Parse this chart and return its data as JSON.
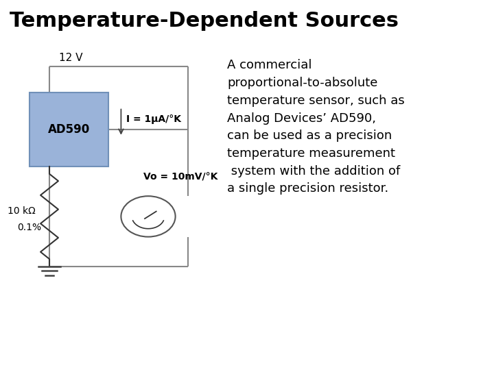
{
  "title": "Temperature-Dependent Sources",
  "title_fontsize": 22,
  "title_fontweight": "bold",
  "title_fontfamily": "DejaVu Sans",
  "bg_color": "#ffffff",
  "circuit_label_12v": "12 V",
  "circuit_label_ad590": "AD590",
  "circuit_label_current": "I = 1μA/°K",
  "circuit_label_vo": "Vo = 10mV/°K",
  "circuit_label_res1": "10 kΩ",
  "circuit_label_res2": "0.1%",
  "ad590_fill": "#9ab3d9",
  "ad590_edge": "#7090b8",
  "wire_color": "#888888",
  "text_color": "#000000",
  "body_text": "A commercial\nproportional-to-absolute\ntemperature sensor, such as\nAnalog Devices’ AD590,\ncan be used as a precision\ntemperature measurement\n system with the addition of\na single precision resistor.",
  "body_fontsize": 13,
  "body_fontfamily": "DejaVu Sans"
}
